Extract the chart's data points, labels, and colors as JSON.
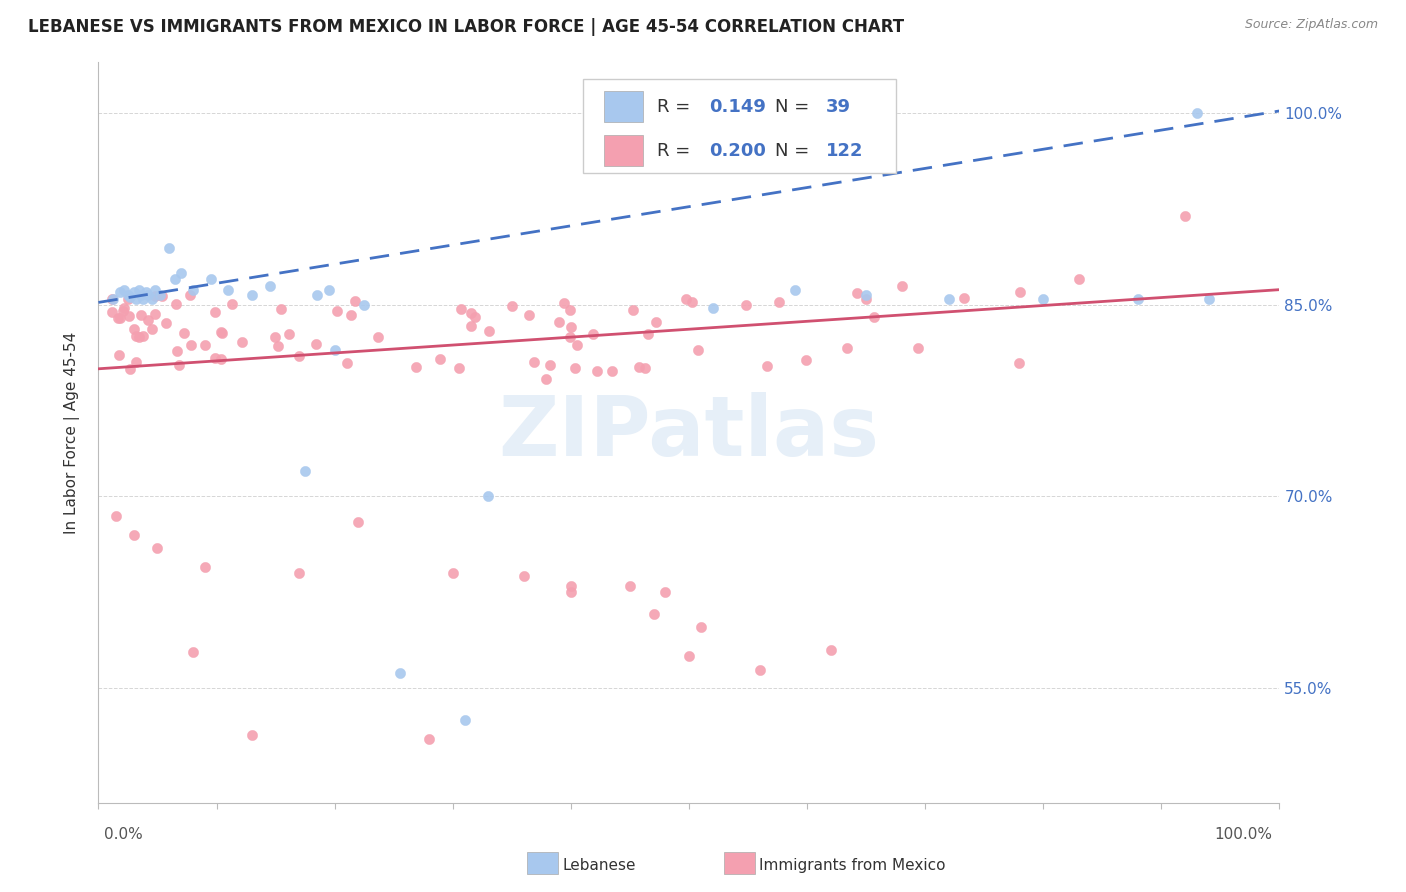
{
  "title": "LEBANESE VS IMMIGRANTS FROM MEXICO IN LABOR FORCE | AGE 45-54 CORRELATION CHART",
  "source": "Source: ZipAtlas.com",
  "ylabel": "In Labor Force | Age 45-54",
  "ytick_labels": [
    "55.0%",
    "70.0%",
    "85.0%",
    "100.0%"
  ],
  "ytick_values": [
    0.55,
    0.7,
    0.85,
    1.0
  ],
  "xlim": [
    0.0,
    1.0
  ],
  "ylim": [
    0.46,
    1.04
  ],
  "blue_color": "#A8C8EE",
  "pink_color": "#F4A0B0",
  "blue_line_color": "#4472C4",
  "pink_line_color": "#D05070",
  "legend_R_blue": "0.149",
  "legend_N_blue": "39",
  "legend_R_pink": "0.200",
  "legend_N_pink": "122",
  "watermark": "ZIPatlas",
  "blue_trend_x": [
    0.0,
    1.0
  ],
  "blue_trend_y": [
    0.852,
    1.002
  ],
  "pink_trend_x": [
    0.0,
    1.0
  ],
  "pink_trend_y": [
    0.8,
    0.862
  ]
}
